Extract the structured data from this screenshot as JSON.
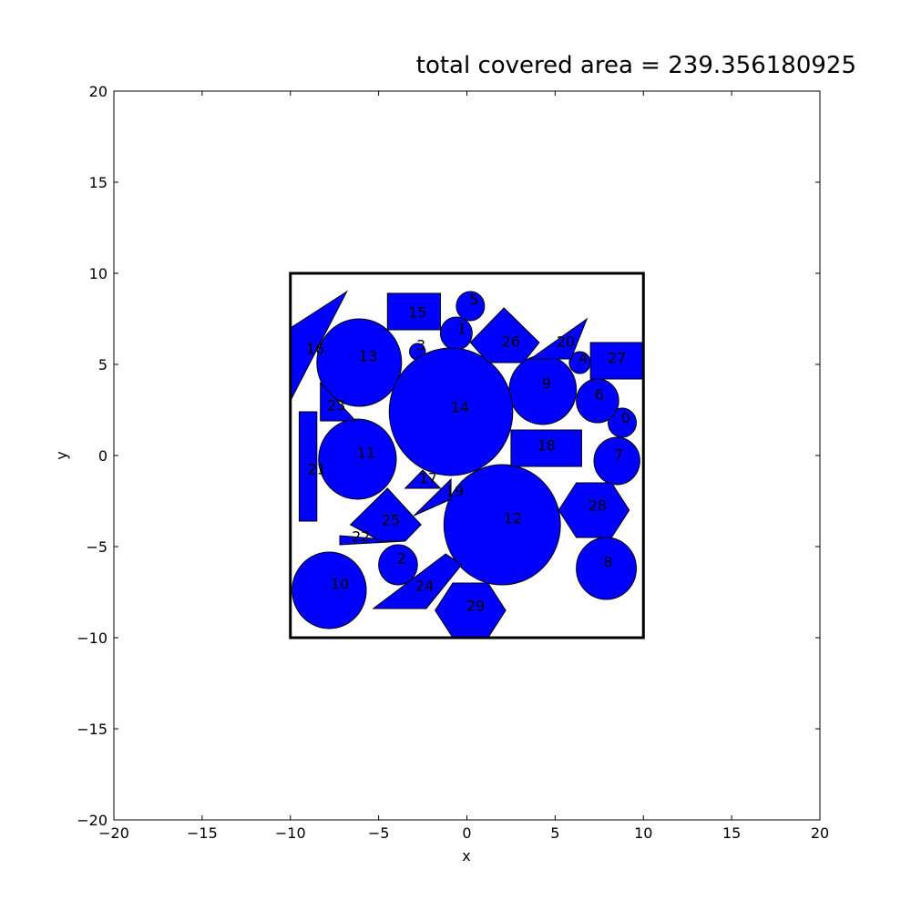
{
  "chart_data": {
    "type": "shapes",
    "title": "total covered area =  239.356180925",
    "xlabel": "x",
    "ylabel": "y",
    "xlim": [
      -20,
      20
    ],
    "ylim": [
      -20,
      20
    ],
    "xticks": [
      -20,
      -15,
      -10,
      -5,
      0,
      5,
      10,
      15,
      20
    ],
    "yticks": [
      -20,
      -15,
      -10,
      -5,
      0,
      5,
      10,
      15,
      20
    ],
    "xtick_labels": [
      "−20",
      "−15",
      "−10",
      "−5",
      "0",
      "5",
      "10",
      "15",
      "20"
    ],
    "ytick_labels": [
      "−20",
      "−15",
      "−10",
      "−5",
      "0",
      "5",
      "10",
      "15",
      "20"
    ],
    "grid": false,
    "fill_color": "#0000ff",
    "edge_color": "#000000",
    "container": {
      "x": [
        -10,
        10
      ],
      "y": [
        -10,
        10
      ]
    },
    "shapes": [
      {
        "label": "0",
        "kind": "circle",
        "cx": 8.8,
        "cy": 1.8,
        "r": 0.8,
        "lx": 9.0,
        "ly": 2.0
      },
      {
        "label": "1",
        "kind": "circle",
        "cx": -0.6,
        "cy": 6.7,
        "r": 0.9,
        "lx": -0.3,
        "ly": 6.9
      },
      {
        "label": "2",
        "kind": "circle",
        "cx": -3.9,
        "cy": -6.0,
        "r": 1.1,
        "lx": -3.7,
        "ly": -5.7
      },
      {
        "label": "3",
        "kind": "circle",
        "cx": -2.8,
        "cy": 5.7,
        "r": 0.45,
        "lx": -2.6,
        "ly": 6.0
      },
      {
        "label": "4",
        "kind": "circle",
        "cx": 6.4,
        "cy": 5.1,
        "r": 0.6,
        "lx": 6.6,
        "ly": 5.3
      },
      {
        "label": "5",
        "kind": "circle",
        "cx": 0.2,
        "cy": 8.2,
        "r": 0.8,
        "lx": 0.4,
        "ly": 8.5
      },
      {
        "label": "6",
        "kind": "circle",
        "cx": 7.4,
        "cy": 3.0,
        "r": 1.2,
        "lx": 7.5,
        "ly": 3.3
      },
      {
        "label": "7",
        "kind": "circle",
        "cx": 8.5,
        "cy": -0.3,
        "r": 1.3,
        "lx": 8.6,
        "ly": 0.0
      },
      {
        "label": "8",
        "kind": "circle",
        "cx": 7.9,
        "cy": -6.2,
        "r": 1.7,
        "lx": 8.0,
        "ly": -5.9
      },
      {
        "label": "9",
        "kind": "circle",
        "cx": 4.3,
        "cy": 3.6,
        "r": 1.9,
        "lx": 4.5,
        "ly": 3.9
      },
      {
        "label": "10",
        "kind": "circle",
        "cx": -7.8,
        "cy": -7.4,
        "r": 2.1,
        "lx": -7.2,
        "ly": -7.1
      },
      {
        "label": "11",
        "kind": "circle",
        "cx": -6.2,
        "cy": -0.2,
        "r": 2.2,
        "lx": -5.7,
        "ly": 0.1
      },
      {
        "label": "12",
        "kind": "circle",
        "cx": 2.0,
        "cy": -3.8,
        "r": 3.3,
        "lx": 2.6,
        "ly": -3.5
      },
      {
        "label": "13",
        "kind": "circle",
        "cx": -6.1,
        "cy": 5.1,
        "r": 2.4,
        "lx": -5.6,
        "ly": 5.4
      },
      {
        "label": "14",
        "kind": "circle",
        "cx": -0.9,
        "cy": 2.4,
        "r": 3.5,
        "lx": -0.4,
        "ly": 2.6
      },
      {
        "label": "15",
        "kind": "polygon",
        "points": [
          [
            -4.5,
            6.9
          ],
          [
            -1.5,
            6.9
          ],
          [
            -1.5,
            8.9
          ],
          [
            -4.5,
            8.9
          ]
        ],
        "lx": -2.8,
        "ly": 7.8
      },
      {
        "label": "16",
        "kind": "polygon",
        "points": [
          [
            -10.0,
            3.0
          ],
          [
            -10.0,
            7.0
          ],
          [
            -6.8,
            9.0
          ]
        ],
        "lx": -8.6,
        "ly": 5.8
      },
      {
        "label": "17",
        "kind": "polygon",
        "points": [
          [
            -3.5,
            -1.8
          ],
          [
            -1.5,
            -1.8
          ],
          [
            -2.5,
            -0.8
          ]
        ],
        "lx": -2.2,
        "ly": -1.3
      },
      {
        "label": "18",
        "kind": "polygon",
        "points": [
          [
            2.5,
            -0.6
          ],
          [
            6.5,
            -0.6
          ],
          [
            6.5,
            1.4
          ],
          [
            2.5,
            1.4
          ]
        ],
        "lx": 4.5,
        "ly": 0.5
      },
      {
        "label": "19",
        "kind": "polygon",
        "points": [
          [
            -3.0,
            -3.3
          ],
          [
            -0.9,
            -1.3
          ],
          [
            -0.9,
            -2.4
          ]
        ],
        "lx": -0.7,
        "ly": -2.0
      },
      {
        "label": "20",
        "kind": "polygon",
        "points": [
          [
            3.6,
            5.3
          ],
          [
            6.8,
            7.5
          ],
          [
            5.9,
            5.3
          ]
        ],
        "lx": 5.6,
        "ly": 6.2
      },
      {
        "label": "21",
        "kind": "polygon",
        "points": [
          [
            -9.5,
            -3.6
          ],
          [
            -8.5,
            -3.6
          ],
          [
            -8.5,
            2.4
          ],
          [
            -9.5,
            2.4
          ]
        ],
        "lx": -8.5,
        "ly": -0.8
      },
      {
        "label": "22",
        "kind": "polygon",
        "points": [
          [
            -7.2,
            -4.9
          ],
          [
            -3.5,
            -4.7
          ],
          [
            -7.2,
            -4.4
          ]
        ],
        "lx": -6.0,
        "ly": -4.5
      },
      {
        "label": "23",
        "kind": "polygon",
        "points": [
          [
            -8.3,
            1.9
          ],
          [
            -8.3,
            4.0
          ],
          [
            -6.3,
            1.9
          ]
        ],
        "lx": -7.4,
        "ly": 2.7
      },
      {
        "label": "24",
        "kind": "polygon",
        "points": [
          [
            -5.3,
            -8.4
          ],
          [
            -2.3,
            -8.4
          ],
          [
            -0.3,
            -6.0
          ],
          [
            -1.2,
            -5.4
          ]
        ],
        "lx": -2.4,
        "ly": -7.2
      },
      {
        "label": "25",
        "kind": "polygon",
        "points": [
          [
            -6.6,
            -3.8
          ],
          [
            -4.5,
            -1.8
          ],
          [
            -2.6,
            -3.8
          ],
          [
            -3.5,
            -4.7
          ],
          [
            -4.9,
            -4.7
          ]
        ],
        "lx": -4.3,
        "ly": -3.6
      },
      {
        "label": "26",
        "kind": "polygon",
        "points": [
          [
            0.2,
            6.2
          ],
          [
            2.1,
            8.1
          ],
          [
            4.1,
            6.2
          ],
          [
            3.2,
            5.1
          ],
          [
            1.2,
            5.1
          ]
        ],
        "lx": 2.5,
        "ly": 6.2
      },
      {
        "label": "27",
        "kind": "polygon",
        "points": [
          [
            7.0,
            4.2
          ],
          [
            10.0,
            4.2
          ],
          [
            10.0,
            6.2
          ],
          [
            7.0,
            6.2
          ]
        ],
        "lx": 8.5,
        "ly": 5.3
      },
      {
        "label": "28",
        "kind": "polygon",
        "points": [
          [
            5.2,
            -3.0
          ],
          [
            6.2,
            -1.5
          ],
          [
            8.2,
            -1.5
          ],
          [
            9.2,
            -3.0
          ],
          [
            8.2,
            -4.5
          ],
          [
            6.2,
            -4.5
          ]
        ],
        "lx": 7.4,
        "ly": -2.8
      },
      {
        "label": "29",
        "kind": "polygon",
        "points": [
          [
            -1.8,
            -8.5
          ],
          [
            -0.8,
            -7.0
          ],
          [
            1.2,
            -7.0
          ],
          [
            2.2,
            -8.5
          ],
          [
            1.2,
            -10.0
          ],
          [
            -0.8,
            -10.0
          ]
        ],
        "lx": 0.5,
        "ly": -8.3
      }
    ]
  }
}
